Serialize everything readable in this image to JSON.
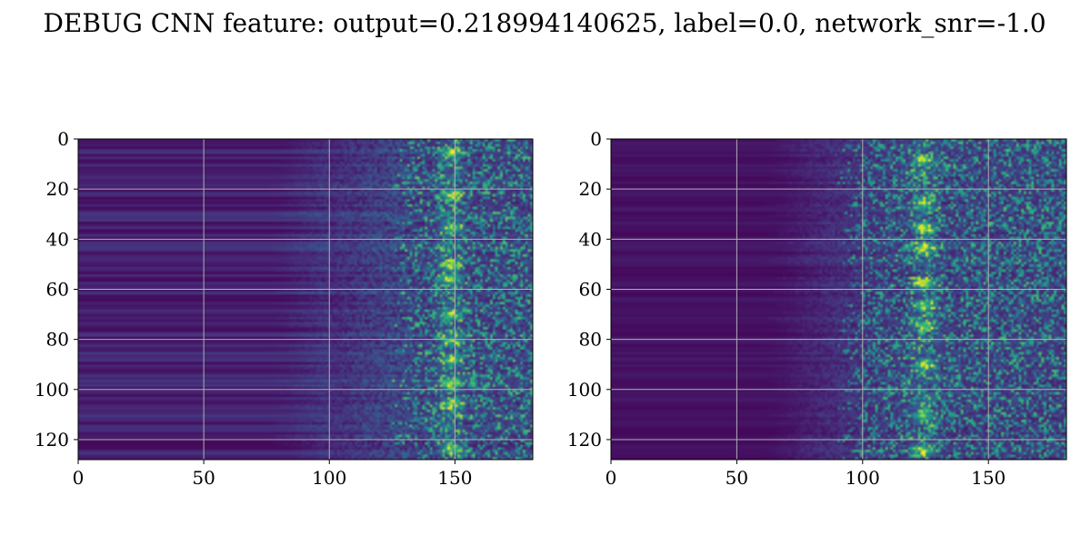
{
  "figure": {
    "title": "DEBUG CNN feature: output=0.218994140625, label=0.0, network_snr=-1.0"
  },
  "chart_data": [
    {
      "type": "heatmap",
      "colormap": "viridis",
      "grid": true,
      "xlim": [
        0,
        181
      ],
      "ylim": [
        128,
        0
      ],
      "x_ticks": [
        0,
        50,
        100,
        150
      ],
      "y_ticks": [
        0,
        20,
        40,
        60,
        80,
        100,
        120
      ],
      "x_tick_labels": [
        "0",
        "50",
        "100",
        "150"
      ],
      "y_tick_labels": [
        "0",
        "20",
        "40",
        "60",
        "80",
        "100",
        "120"
      ],
      "rows": 128,
      "cols": 181,
      "onset_col": 100,
      "bright_band_cols": [
        130,
        181
      ],
      "peak_col": 148,
      "peak_rows": [
        5,
        22,
        35,
        50,
        55,
        70,
        80,
        88,
        97,
        105,
        123
      ]
    },
    {
      "type": "heatmap",
      "colormap": "viridis",
      "grid": true,
      "xlim": [
        0,
        181
      ],
      "ylim": [
        128,
        0
      ],
      "x_ticks": [
        0,
        50,
        100,
        150
      ],
      "y_ticks": [
        0,
        20,
        40,
        60,
        80,
        100,
        120
      ],
      "x_tick_labels": [
        "0",
        "50",
        "100",
        "150"
      ],
      "y_tick_labels": [
        "0",
        "20",
        "40",
        "60",
        "80",
        "100",
        "120"
      ],
      "rows": 128,
      "cols": 181,
      "onset_col": 85,
      "bright_band_cols": [
        95,
        181
      ],
      "peak_col": 124,
      "peak_rows": [
        8,
        25,
        35,
        43,
        57,
        66,
        74,
        90,
        110,
        124
      ]
    }
  ]
}
